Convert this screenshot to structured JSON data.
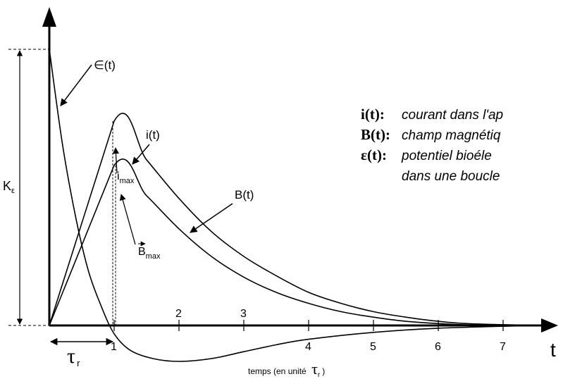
{
  "chart_data": {
    "type": "line",
    "xlabel": "temps (en unité",
    "xlabel_tau": "τ",
    "xlabel_tau_sub": "r",
    "xlabel_close": ")",
    "x_axis_symbol": "t",
    "xlim": [
      0,
      7.5
    ],
    "ylim": [
      -0.22,
      1.22
    ],
    "x_tick_labels": [
      {
        "x": 1,
        "label": "1",
        "pos": "below"
      },
      {
        "x": 2,
        "label": "2",
        "pos": "above"
      },
      {
        "x": 3,
        "label": "3",
        "pos": "above"
      },
      {
        "x": 4,
        "label": "4",
        "pos": "below"
      },
      {
        "x": 5,
        "label": "5",
        "pos": "below"
      },
      {
        "x": 6,
        "label": "6",
        "pos": "below"
      },
      {
        "x": 7,
        "label": "7",
        "pos": "below"
      }
    ],
    "y_marker": {
      "label": "K",
      "sub": "ε",
      "value": 1.0
    },
    "series": [
      {
        "key": "i",
        "label": "i(t)",
        "x": [
          0,
          1,
          1.5,
          2,
          2.5,
          3,
          3.5,
          4,
          4.5,
          5,
          5.5,
          6,
          6.5,
          7.5
        ],
        "y": [
          0,
          0.74,
          0.6,
          0.46,
          0.34,
          0.25,
          0.18,
          0.12,
          0.08,
          0.05,
          0.03,
          0.015,
          0.006,
          0.0
        ]
      },
      {
        "key": "B",
        "label": "B(t)",
        "x": [
          0,
          1,
          1.5,
          2,
          2.5,
          3,
          3.5,
          4,
          4.5,
          5,
          5.5,
          6,
          6.5,
          7.5
        ],
        "y": [
          0,
          0.58,
          0.47,
          0.35,
          0.25,
          0.175,
          0.12,
          0.08,
          0.05,
          0.03,
          0.015,
          0.007,
          0.002,
          0.0
        ]
      },
      {
        "key": "eps",
        "label": "∈(t)",
        "x": [
          0,
          0.2,
          0.4,
          0.6,
          0.8,
          1,
          1.25,
          1.6,
          2,
          2.5,
          3,
          3.5,
          4,
          5,
          6,
          7.5
        ],
        "y": [
          1.0,
          0.66,
          0.4,
          0.2,
          0.07,
          -0.03,
          -0.09,
          -0.12,
          -0.13,
          -0.12,
          -0.095,
          -0.07,
          -0.05,
          -0.025,
          -0.01,
          0.0
        ]
      }
    ],
    "annotations": {
      "i_max": {
        "label": "i",
        "sub": "max",
        "x": 1.0,
        "y": 0.74
      },
      "B_max": {
        "label": "B",
        "sub": "max",
        "x": 1.0,
        "y": 0.58
      },
      "tau_r": {
        "label": "τ",
        "sub": "r",
        "from": 0,
        "to": 1
      }
    },
    "legend": [
      {
        "key": "i(t):",
        "desc": "courant dans l'ap"
      },
      {
        "key": "B(t):",
        "desc": "champ magnétiq"
      },
      {
        "key": "ε(t):",
        "desc": "potentiel bioéle"
      },
      {
        "key": "",
        "desc": "dans une boucle"
      }
    ],
    "legend_placement": "top-right"
  }
}
